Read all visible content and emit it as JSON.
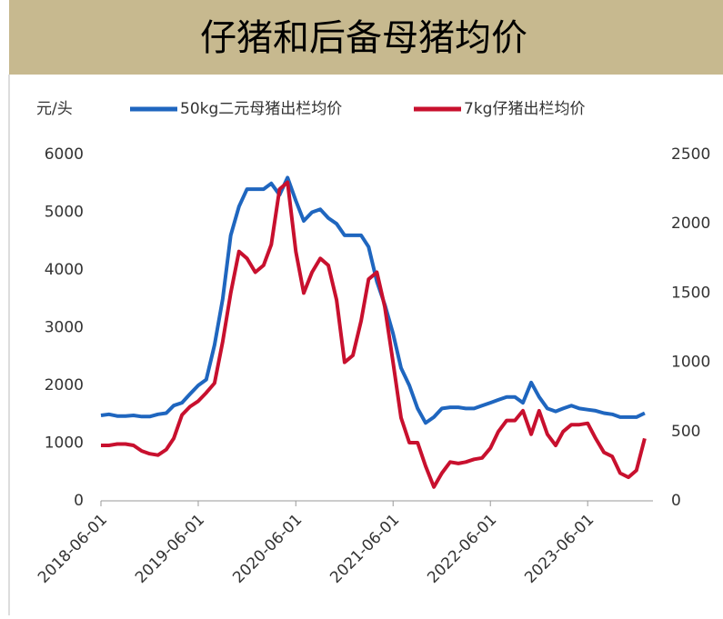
{
  "chart_data": {
    "type": "line",
    "title": "仔猪和后备母猪均价",
    "ylabel": "元/头",
    "x": [
      "2018-06-01",
      "2018-07-01",
      "2018-08-01",
      "2018-09-01",
      "2018-10-01",
      "2018-11-01",
      "2018-12-01",
      "2019-01-01",
      "2019-02-01",
      "2019-03-01",
      "2019-04-01",
      "2019-05-01",
      "2019-06-01",
      "2019-07-01",
      "2019-08-01",
      "2019-09-01",
      "2019-10-01",
      "2019-11-01",
      "2019-12-01",
      "2020-01-01",
      "2020-02-01",
      "2020-03-01",
      "2020-04-01",
      "2020-05-01",
      "2020-06-01",
      "2020-07-01",
      "2020-08-01",
      "2020-09-01",
      "2020-10-01",
      "2020-11-01",
      "2020-12-01",
      "2021-01-01",
      "2021-02-01",
      "2021-03-01",
      "2021-04-01",
      "2021-05-01",
      "2021-06-01",
      "2021-07-01",
      "2021-08-01",
      "2021-09-01",
      "2021-10-01",
      "2021-11-01",
      "2021-12-01",
      "2022-01-01",
      "2022-02-01",
      "2022-03-01",
      "2022-04-01",
      "2022-05-01",
      "2022-06-01",
      "2022-07-01",
      "2022-08-01",
      "2022-09-01",
      "2022-10-01",
      "2022-11-01",
      "2022-12-01",
      "2023-01-01",
      "2023-02-01",
      "2023-03-01",
      "2023-04-01",
      "2023-05-01",
      "2023-06-01",
      "2023-07-01",
      "2023-08-01",
      "2023-09-01",
      "2023-10-01",
      "2023-11-01",
      "2023-12-01",
      "2024-01-01"
    ],
    "series": [
      {
        "name": "50kg二元母猪出栏均价",
        "color": "#1f66bf",
        "axis": "y",
        "values": [
          1480,
          1500,
          1470,
          1470,
          1480,
          1460,
          1460,
          1500,
          1520,
          1650,
          1700,
          1850,
          2000,
          2100,
          2700,
          3500,
          4600,
          5100,
          5400,
          5400,
          5400,
          5500,
          5300,
          5600,
          5200,
          4850,
          5000,
          5050,
          4900,
          4800,
          4600,
          4600,
          4600,
          4400,
          3800,
          3400,
          2900,
          2300,
          2000,
          1600,
          1350,
          1450,
          1600,
          1620,
          1620,
          1600,
          1600,
          1650,
          1700,
          1750,
          1800,
          1800,
          1700,
          2050,
          1800,
          1600,
          1550,
          1600,
          1650,
          1600,
          1580,
          1560,
          1520,
          1500,
          1450,
          1450,
          1450,
          1520
        ]
      },
      {
        "name": "7kg仔猪出栏均价",
        "color": "#c8102e",
        "axis": "y2",
        "values": [
          400,
          400,
          410,
          410,
          400,
          360,
          340,
          330,
          370,
          450,
          620,
          680,
          720,
          780,
          850,
          1150,
          1500,
          1800,
          1750,
          1650,
          1700,
          1850,
          2250,
          2300,
          1800,
          1500,
          1650,
          1750,
          1700,
          1450,
          1000,
          1050,
          1300,
          1600,
          1650,
          1400,
          1000,
          600,
          420,
          420,
          250,
          100,
          200,
          280,
          270,
          280,
          300,
          310,
          380,
          500,
          580,
          580,
          650,
          480,
          650,
          480,
          400,
          500,
          550,
          550,
          560,
          450,
          350,
          320,
          200,
          170,
          220,
          450
        ]
      }
    ],
    "xlim": [
      "2018-06-01",
      "2024-02-01"
    ],
    "xticks": [
      "2018-06-01",
      "2019-06-01",
      "2020-06-01",
      "2021-06-01",
      "2022-06-01",
      "2023-06-01"
    ],
    "ylim": [
      0,
      6000
    ],
    "yticks": [
      0,
      1000,
      2000,
      3000,
      4000,
      5000,
      6000
    ],
    "y2lim": [
      0,
      2500
    ],
    "y2ticks": [
      0,
      500,
      1000,
      1500,
      2000,
      2500
    ]
  }
}
